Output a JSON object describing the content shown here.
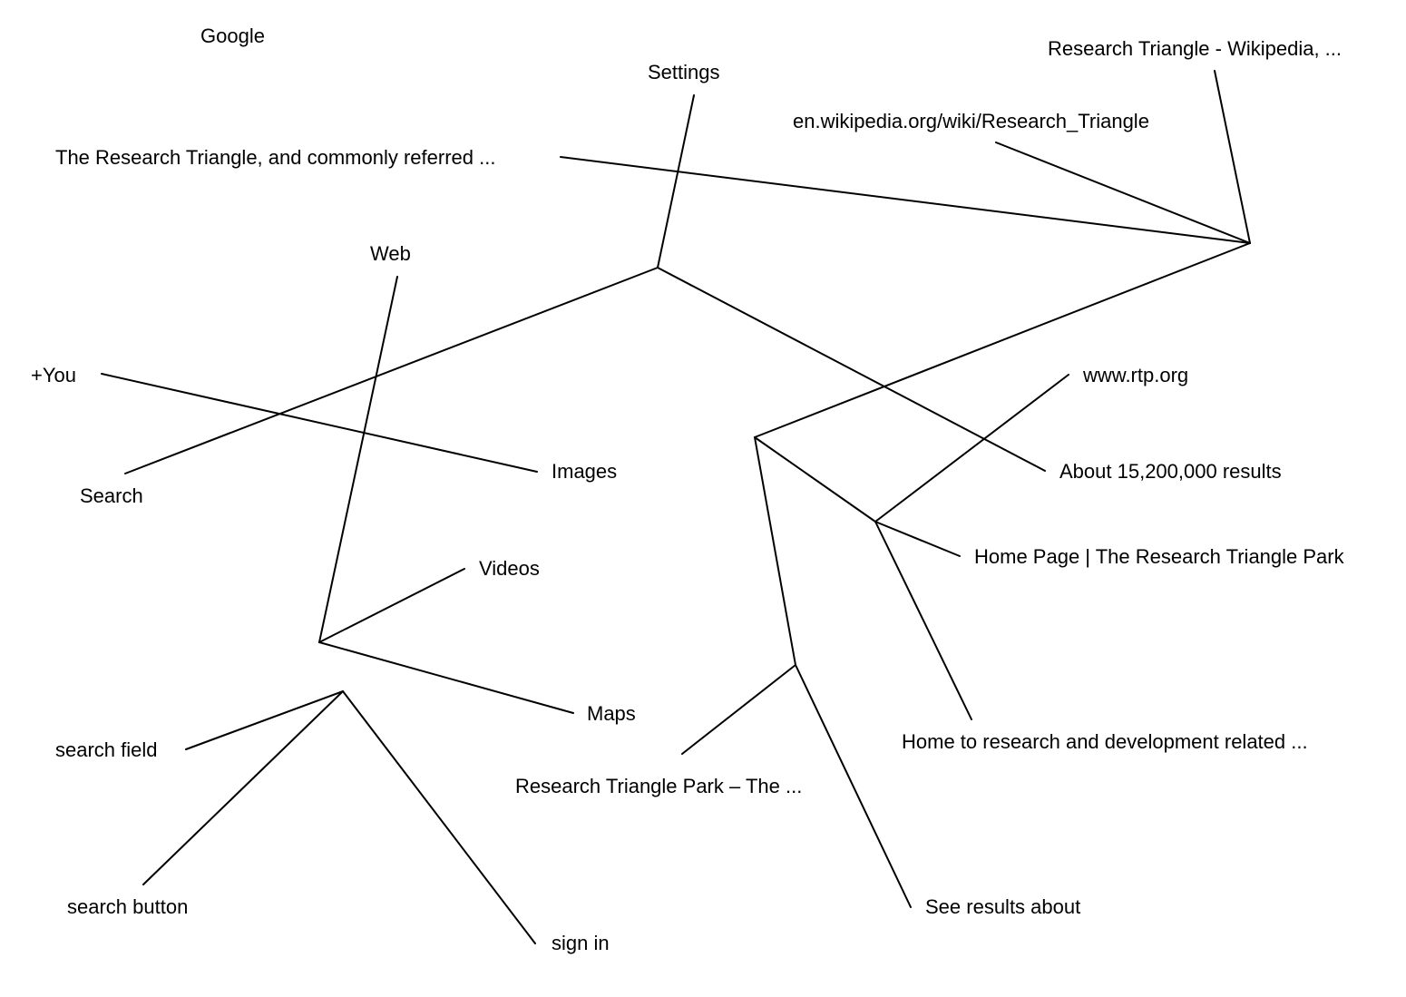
{
  "labels": {
    "google": "Google",
    "settings": "Settings",
    "wiki_title": "Research Triangle - Wikipedia, ...",
    "wiki_url": "en.wikipedia.org/wiki/Research_Triangle",
    "wiki_snippet": "The Research Triangle, and commonly referred ...",
    "web": "Web",
    "you": "+You",
    "search": "Search",
    "images": "Images",
    "videos": "Videos",
    "maps": "Maps",
    "search_field": "search field",
    "search_button": "search button",
    "sign_in": "sign in",
    "rtp_url": "www.rtp.org",
    "results_count": "About 15,200,000 results",
    "rtp_home": "Home Page | The Research Triangle Park",
    "rtp_snippet": "Home to research and development related ...",
    "rtp_park": "Research Triangle Park – The ...",
    "see_results": "See results about"
  }
}
